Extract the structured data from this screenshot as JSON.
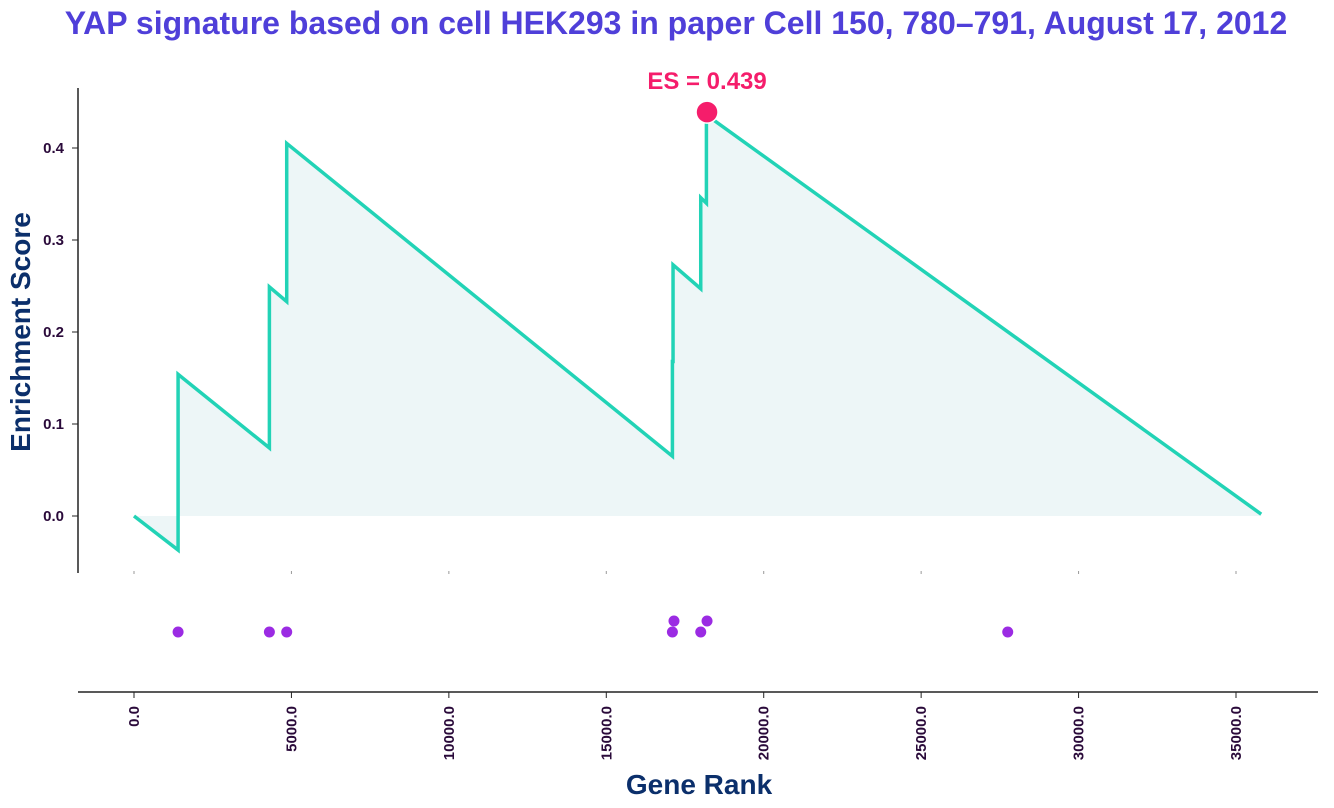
{
  "chart_data": {
    "type": "line",
    "title": "YAP signature based on cell HEK293 in paper Cell 150, 780–791, August 17, 2012",
    "ylabel": "Enrichment Score",
    "xlabel": "Gene Rank",
    "ylim": [
      -0.06,
      0.46
    ],
    "xlim": [
      -1800,
      37500
    ],
    "y_ticks": [
      "0.0",
      "0.1",
      "0.2",
      "0.3",
      "0.4"
    ],
    "x_ticks": [
      "0.0",
      "5000.0",
      "10000.0",
      "15000.0",
      "20000.0",
      "25000.0",
      "30000.0",
      "35000.0"
    ],
    "es_annotation": {
      "label": "ES = 0.439",
      "x": 18200,
      "y": 0.439
    },
    "series": [
      {
        "x": [
          0,
          1400,
          1400,
          4300,
          4300,
          4850,
          4850,
          17100,
          17100,
          17120,
          17120,
          18000,
          18000,
          18180,
          18180,
          18200,
          18220,
          35800
        ],
        "y": [
          0.0,
          -0.037,
          0.154,
          0.074,
          0.249,
          0.233,
          0.405,
          0.065,
          0.168,
          0.168,
          0.273,
          0.247,
          0.346,
          0.34,
          0.428,
          0.439,
          0.435,
          0.002
        ]
      }
    ],
    "hits": [
      {
        "x": 1400,
        "row": 0
      },
      {
        "x": 4300,
        "row": 0
      },
      {
        "x": 4850,
        "row": 0
      },
      {
        "x": 17100,
        "row": 0
      },
      {
        "x": 17150,
        "row": 1
      },
      {
        "x": 18000,
        "row": 0
      },
      {
        "x": 18200,
        "row": 1
      },
      {
        "x": 27750,
        "row": 0
      }
    ],
    "colors": {
      "line": "#22d3b6",
      "fill": "#edf6f7",
      "es_point": "#f51d6b",
      "hits": "#9b2be3",
      "axis": "#222222"
    }
  }
}
